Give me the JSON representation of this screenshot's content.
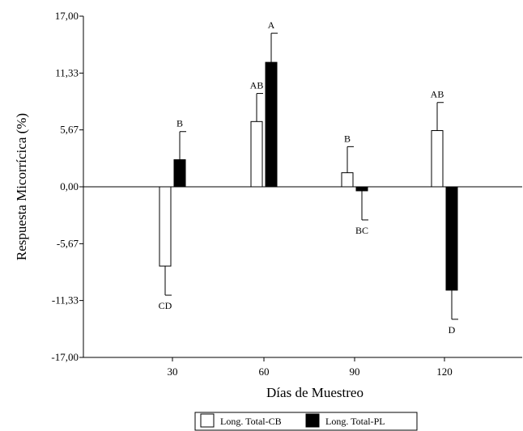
{
  "chart_data": {
    "type": "bar",
    "xlabel": "Días de Muestreo",
    "ylabel": "Respuesta Micorrícica (%)",
    "ylim": [
      -17.0,
      17.0
    ],
    "y_ticks": [
      "17,00",
      "11,33",
      "5,67",
      "0,00",
      "-5,67",
      "-11,33",
      "-17,00"
    ],
    "y_tick_values": [
      17.0,
      11.33,
      5.67,
      0.0,
      -5.67,
      -11.33,
      -17.0
    ],
    "categories": [
      "30",
      "60",
      "90",
      "120"
    ],
    "grid": false,
    "legend_position": "bottom-center",
    "series": [
      {
        "name": "Long. Total-CB",
        "color": "#ffffff",
        "values": [
          -7.9,
          6.5,
          1.4,
          5.6
        ],
        "error": [
          2.9,
          2.8,
          2.6,
          2.8
        ],
        "labels": [
          "CD",
          "AB",
          "B",
          "AB"
        ]
      },
      {
        "name": "Long. Total-PL",
        "color": "#000000",
        "values": [
          2.7,
          12.4,
          -0.4,
          -10.3
        ],
        "error": [
          2.8,
          2.9,
          2.9,
          2.9
        ],
        "labels": [
          "B",
          "A",
          "BC",
          "D"
        ]
      }
    ]
  }
}
